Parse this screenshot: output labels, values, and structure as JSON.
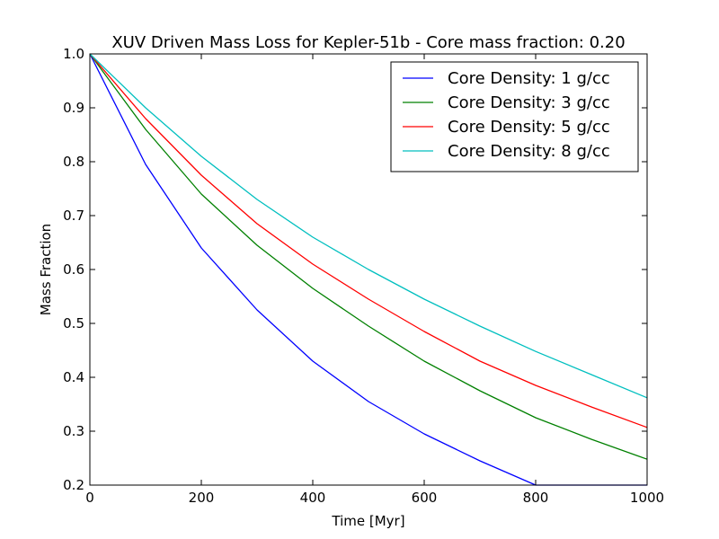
{
  "chart_data": {
    "type": "line",
    "title": "XUV Driven Mass Loss for Kepler-51b - Core mass fraction: 0.20",
    "xlabel": "Time [Myr]",
    "ylabel": "Mass Fraction",
    "xlim": [
      0,
      1000
    ],
    "ylim": [
      0.2,
      1.0
    ],
    "xticks": [
      "0",
      "200",
      "400",
      "600",
      "800",
      "1000"
    ],
    "yticks": [
      "0.2",
      "0.3",
      "0.4",
      "0.5",
      "0.6",
      "0.7",
      "0.8",
      "0.9",
      "1.0"
    ],
    "grid": false,
    "legend_position": "top-right",
    "x": [
      0,
      100,
      200,
      300,
      400,
      500,
      600,
      700,
      800,
      900,
      1000
    ],
    "series": [
      {
        "name": "Core Density: 1 g/cc",
        "color": "#0000ff",
        "values": [
          1.0,
          0.795,
          0.64,
          0.525,
          0.43,
          0.355,
          0.295,
          0.245,
          0.2,
          0.2,
          0.2
        ]
      },
      {
        "name": "Core Density: 3 g/cc",
        "color": "#008000",
        "values": [
          1.0,
          0.86,
          0.74,
          0.645,
          0.565,
          0.495,
          0.43,
          0.375,
          0.325,
          0.285,
          0.248
        ]
      },
      {
        "name": "Core Density: 5 g/cc",
        "color": "#ff0000",
        "values": [
          1.0,
          0.88,
          0.775,
          0.685,
          0.61,
          0.545,
          0.485,
          0.43,
          0.385,
          0.345,
          0.307
        ]
      },
      {
        "name": "Core Density: 8 g/cc",
        "color": "#00bfbf",
        "values": [
          1.0,
          0.9,
          0.81,
          0.73,
          0.66,
          0.6,
          0.545,
          0.495,
          0.448,
          0.405,
          0.362
        ]
      }
    ]
  }
}
